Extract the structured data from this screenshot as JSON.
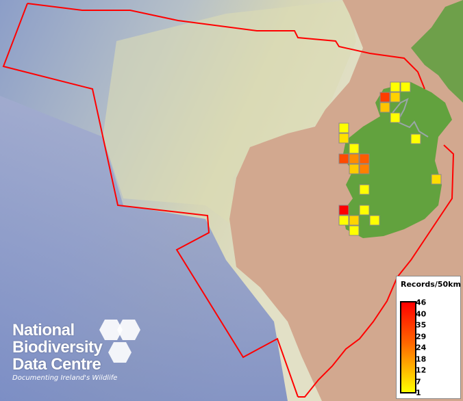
{
  "legend": {
    "title": "Records/50km",
    "ticks": [
      "46",
      "40",
      "35",
      "29",
      "24",
      "18",
      "12",
      "7",
      "1"
    ],
    "color_low": "#ffff00",
    "color_high": "#ff0000"
  },
  "logo": {
    "line1": "National",
    "line2": "Biodiversity",
    "line3": "Data Centre",
    "tagline": "Documenting Ireland's Wildlife"
  },
  "grid_records": [
    {
      "color": "#ffff00"
    },
    {
      "color": "#ffff00"
    },
    {
      "color": "#ff3c00"
    },
    {
      "color": "#ffd200"
    },
    {
      "color": "#ffc400"
    },
    {
      "color": "#ffff00"
    },
    {
      "color": "#ffff00"
    },
    {
      "color": "#ffe000"
    },
    {
      "color": "#ffff00"
    },
    {
      "color": "#ff4a00"
    },
    {
      "color": "#ff8c00"
    },
    {
      "color": "#ff5c00"
    },
    {
      "color": "#ffcc00"
    },
    {
      "color": "#ff8000"
    },
    {
      "color": "#ffdd00"
    },
    {
      "color": "#ffff00"
    },
    {
      "color": "#ffff00"
    },
    {
      "color": "#ff0000"
    },
    {
      "color": "#ffff00"
    },
    {
      "color": "#ffff00"
    },
    {
      "color": "#ffd400"
    },
    {
      "color": "#ffff00"
    },
    {
      "color": "#ffff00"
    }
  ]
}
